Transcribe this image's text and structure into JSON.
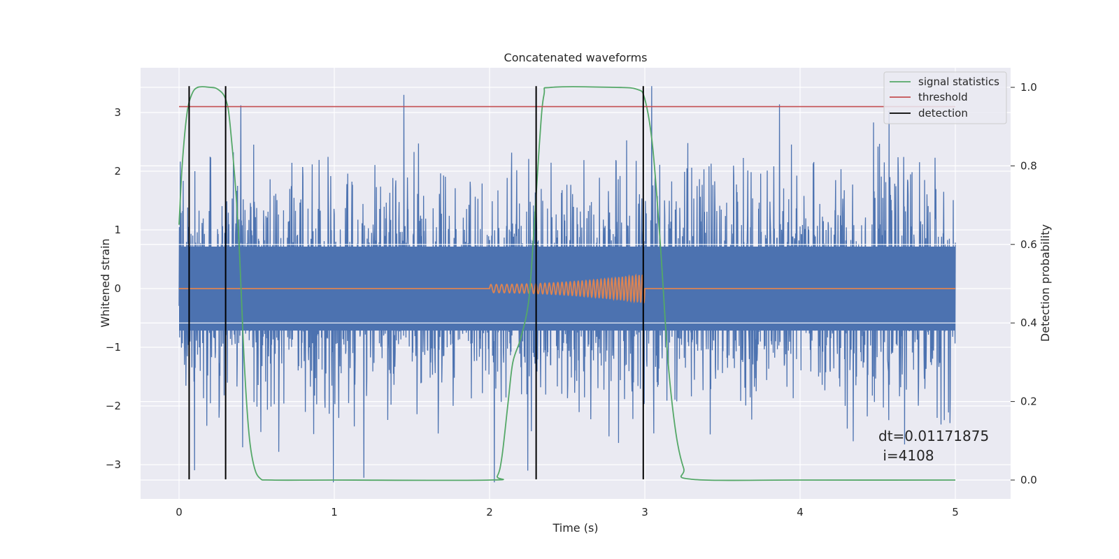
{
  "chart_data": {
    "type": "line",
    "title": "Concatenated waveforms",
    "xlabel": "Time (s)",
    "ylabel": "Whitened strain",
    "y2label": "Detection probability",
    "xlim": [
      -0.25,
      5.35
    ],
    "ylim": [
      -3.5,
      3.55
    ],
    "y2lim": [
      -0.05,
      1.03
    ],
    "grid": true,
    "legend_position": "top-right",
    "x_ticks": [
      0,
      1,
      2,
      3,
      4,
      5
    ],
    "x_tick_labels": [
      "0",
      "1",
      "2",
      "3",
      "4",
      "5"
    ],
    "y_ticks": [
      3,
      2,
      1,
      0,
      -1,
      -2,
      -3
    ],
    "y_tick_labels": [
      "3",
      "2",
      "1",
      "0",
      "−1",
      "−2",
      "−3"
    ],
    "y2_ticks": [
      1.0,
      0.8,
      0.6,
      0.4,
      0.2,
      0.0
    ],
    "y2_tick_labels": [
      "1.0",
      "0.8",
      "0.6",
      "0.4",
      "0.2",
      "0.0"
    ],
    "series": [
      {
        "kind": "noise",
        "color": "#4c72b0",
        "x_range": [
          0,
          5
        ],
        "core_amplitude": 1.3,
        "peak_range": [
          -3.3,
          3.45
        ]
      },
      {
        "kind": "chirp",
        "color": "#dd8452",
        "x_range": [
          2.0,
          3.0
        ],
        "amplitude_range": [
          0.07,
          0.24
        ]
      },
      {
        "name": "signal statistics",
        "color": "#55a868",
        "axis": "right",
        "x": [
          0.0,
          0.02,
          0.05,
          0.08,
          0.12,
          0.2,
          0.25,
          0.3,
          0.33,
          0.38,
          0.42,
          0.45,
          0.48,
          0.52,
          0.6,
          1.0,
          2.0,
          2.05,
          2.08,
          2.12,
          2.15,
          2.2,
          2.25,
          2.28,
          2.32,
          2.35,
          2.4,
          2.8,
          2.95,
          3.0,
          3.05,
          3.1,
          3.15,
          3.2,
          3.25,
          3.3,
          4.0,
          5.0
        ],
        "y": [
          0.65,
          0.8,
          0.93,
          0.98,
          1.0,
          1.0,
          0.995,
          0.97,
          0.9,
          0.65,
          0.3,
          0.12,
          0.04,
          0.005,
          0.0,
          0.0,
          0.0,
          0.01,
          0.06,
          0.2,
          0.3,
          0.36,
          0.45,
          0.6,
          0.85,
          0.98,
          1.0,
          1.0,
          0.995,
          0.97,
          0.85,
          0.6,
          0.3,
          0.12,
          0.03,
          0.002,
          0.0,
          0.0
        ]
      },
      {
        "name": "threshold",
        "color": "#c44e52",
        "axis": "left",
        "x": [
          0,
          5
        ],
        "y": [
          3.1,
          3.1
        ]
      },
      {
        "name": "detection",
        "color": "#000000",
        "axis": "left",
        "x": [
          0.065,
          0.3,
          2.3,
          2.99
        ],
        "y_range": [
          -3.25,
          3.45
        ]
      }
    ],
    "annotations": [
      "dt=0.01171875",
      " i=4108"
    ],
    "annotation_position": [
      4.5,
      -2.5
    ]
  }
}
